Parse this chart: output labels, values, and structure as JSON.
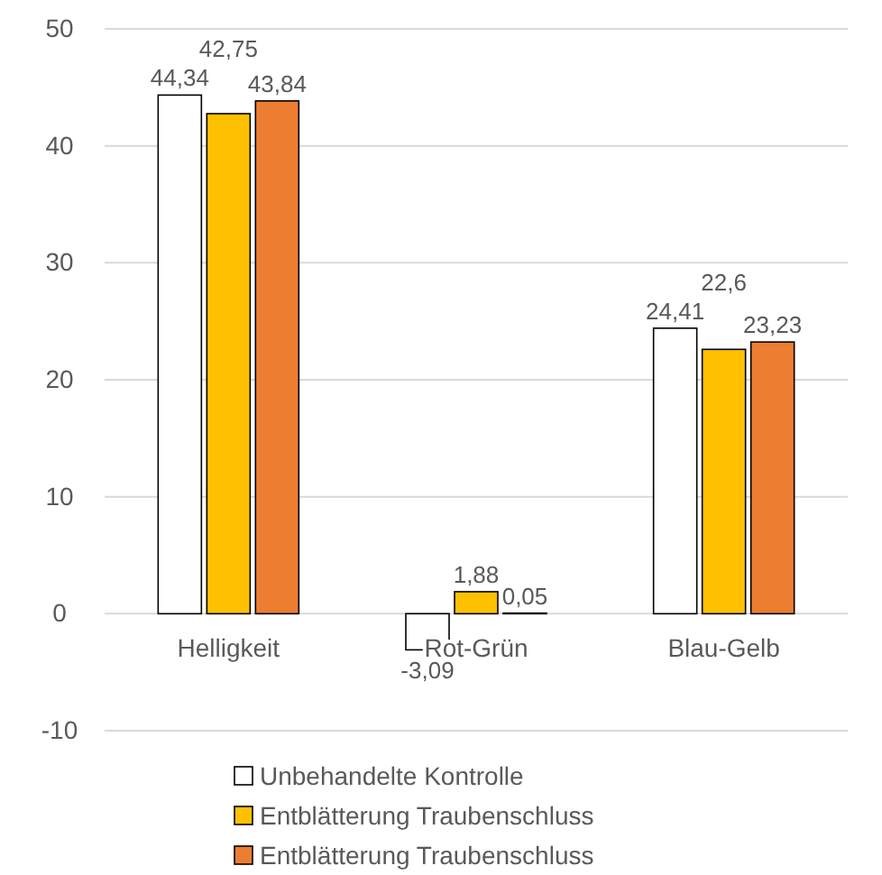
{
  "chart_data": {
    "type": "bar",
    "categories": [
      "Helligkeit",
      "Rot-Grün",
      "Blau-Gelb"
    ],
    "series": [
      {
        "name": "Unbehandelte Kontrolle",
        "color": "#ffffff",
        "values": [
          44.34,
          -3.09,
          24.41
        ],
        "value_labels": [
          "44,34",
          "-3,09",
          "24,41"
        ]
      },
      {
        "name": "Entblätterung Traubenschluss",
        "color": "#ffc000",
        "values": [
          42.75,
          1.88,
          22.6
        ],
        "value_labels": [
          "42,75",
          "1,88",
          "22,6"
        ]
      },
      {
        "name": "Entblätterung Traubenschluss",
        "color": "#ed7d31",
        "values": [
          43.84,
          0.05,
          23.23
        ],
        "value_labels": [
          "43,84",
          "0,05",
          "23,23"
        ]
      }
    ],
    "ylim": [
      -10,
      50
    ],
    "yticks": [
      -10,
      0,
      10,
      20,
      30,
      40,
      50
    ],
    "grid": "y",
    "legend": "bottom"
  }
}
